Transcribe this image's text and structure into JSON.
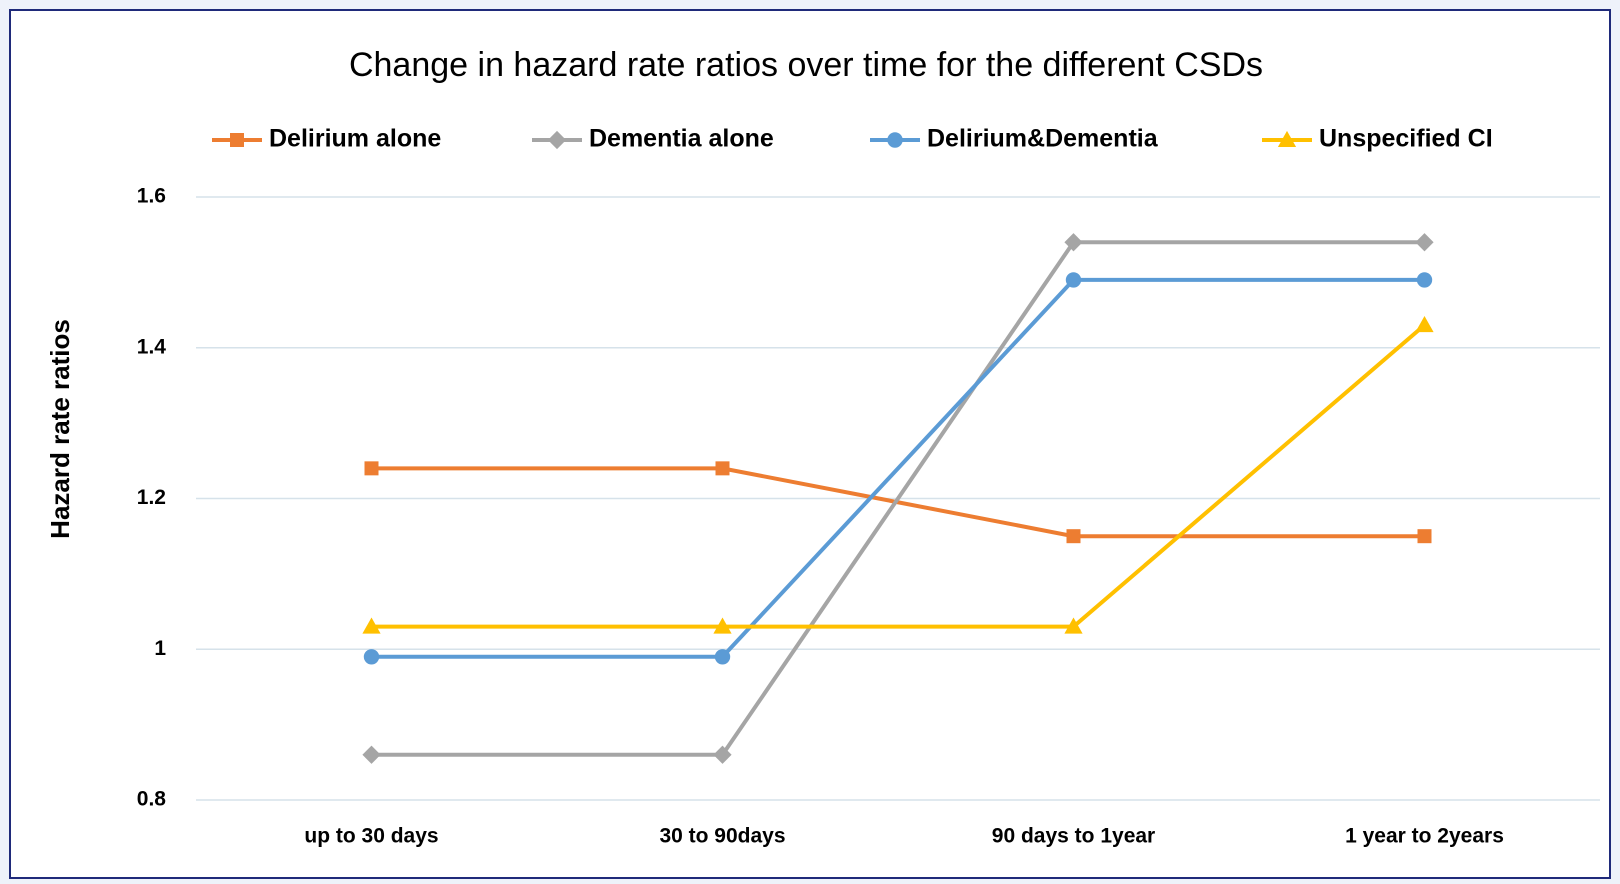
{
  "chart_data": {
    "type": "line",
    "title": "Change in hazard rate ratios over time for the different CSDs",
    "y_axis_label": "Hazard rate ratios",
    "categories": [
      "up to 30 days",
      "30 to 90days",
      "90 days to 1year",
      "1 year to 2years"
    ],
    "series": [
      {
        "name": "Delirium alone",
        "color": "#ed7d31",
        "marker": "square",
        "values": [
          1.24,
          1.24,
          1.15,
          1.15
        ]
      },
      {
        "name": "Dementia alone",
        "color": "#a5a5a5",
        "marker": "diamond",
        "values": [
          0.86,
          0.86,
          1.54,
          1.54
        ]
      },
      {
        "name": "Delirium&Dementia",
        "color": "#5b9bd5",
        "marker": "circle",
        "values": [
          0.99,
          0.99,
          1.49,
          1.49
        ]
      },
      {
        "name": "Unspecified CI",
        "color": "#ffc000",
        "marker": "triangle",
        "values": [
          1.03,
          1.03,
          1.03,
          1.43
        ]
      }
    ],
    "ylim": [
      0.8,
      1.6
    ],
    "yticks": [
      0.8,
      1,
      1.2,
      1.4,
      1.6
    ],
    "grid": true,
    "legend": "top"
  }
}
